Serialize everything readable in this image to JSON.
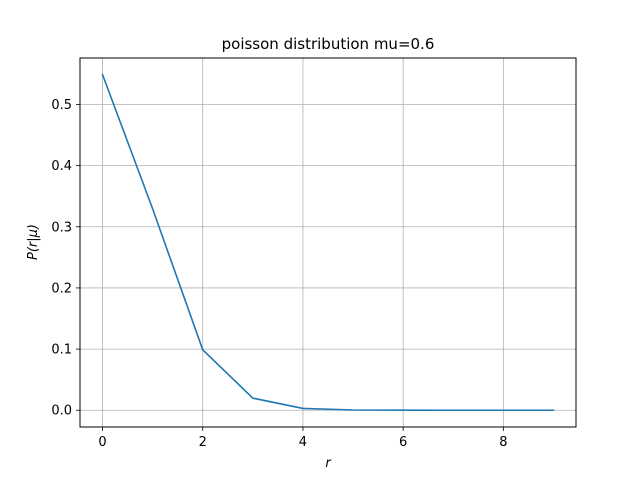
{
  "chart_data": {
    "type": "line",
    "title": "poisson distribution mu=0.6",
    "xlabel": "r",
    "ylabel": "P(r|μ)",
    "xlim": [
      -0.45,
      9.45
    ],
    "ylim": [
      -0.0274,
      0.576
    ],
    "xticks": [
      0,
      2,
      4,
      6,
      8
    ],
    "xtick_labels": [
      "0",
      "2",
      "4",
      "6",
      "8"
    ],
    "yticks": [
      0.0,
      0.1,
      0.2,
      0.3,
      0.4,
      0.5
    ],
    "ytick_labels": [
      "0.0",
      "0.1",
      "0.2",
      "0.3",
      "0.4",
      "0.5"
    ],
    "grid": true,
    "series": [
      {
        "color": "#1f77b4",
        "x": [
          0,
          1,
          2,
          3,
          4,
          5,
          6,
          7,
          8,
          9
        ],
        "values": [
          0.5488,
          0.3293,
          0.0988,
          0.0198,
          0.003,
          0.0004,
          4e-05,
          3e-06,
          2e-07,
          1e-08
        ]
      }
    ]
  }
}
